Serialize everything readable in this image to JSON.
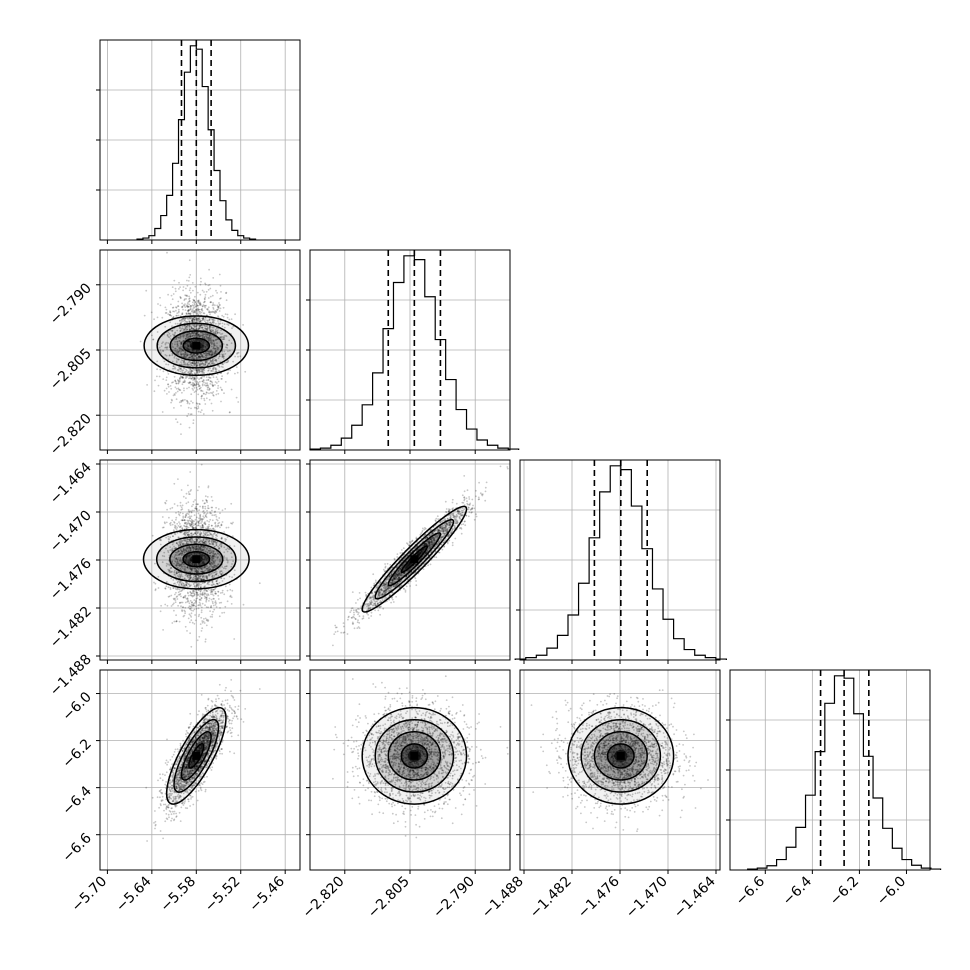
{
  "figure": {
    "type": "corner",
    "title": ""
  },
  "chart_data": {
    "type": "corner",
    "title": "",
    "parameters": [
      {
        "label": "",
        "range": [
          -5.71,
          -5.44
        ],
        "ticks": [
          -5.7,
          -5.64,
          -5.58,
          -5.52,
          -5.46
        ],
        "tick_labels": [
          "−5.70",
          "−5.64",
          "−5.58",
          "−5.52",
          "−5.46"
        ],
        "quantiles": [
          -5.6,
          -5.58,
          -5.56
        ]
      },
      {
        "label": "",
        "range": [
          -2.828,
          -2.782
        ],
        "ticks": [
          -2.82,
          -2.805,
          -2.79
        ],
        "tick_labels": [
          "−2.820",
          "−2.805",
          "−2.790"
        ],
        "quantiles": [
          -2.81,
          -2.804,
          -2.798
        ]
      },
      {
        "label": "",
        "range": [
          -1.4885,
          -1.4635
        ],
        "ticks": [
          -1.488,
          -1.482,
          -1.476,
          -1.47,
          -1.464
        ],
        "tick_labels": [
          "−1.488",
          "−1.482",
          "−1.476",
          "−1.470",
          "−1.464"
        ],
        "quantiles": [
          -1.4792,
          -1.4759,
          -1.4726
        ]
      },
      {
        "label": "",
        "range": [
          -6.75,
          -5.9
        ],
        "ticks": [
          -6.6,
          -6.4,
          -6.2,
          -6.0
        ],
        "tick_labels": [
          "−6.6",
          "−6.4",
          "−6.2",
          "−6.0"
        ],
        "quantiles": [
          -6.365,
          -6.265,
          -6.16
        ]
      }
    ],
    "histograms": [
      [
        2,
        4,
        9,
        24,
        51,
        93,
        160,
        251,
        350,
        405,
        398,
        320,
        230,
        145,
        82,
        42,
        20,
        9,
        4,
        2
      ],
      [
        2,
        4,
        10,
        25,
        52,
        95,
        162,
        255,
        352,
        408,
        400,
        322,
        232,
        148,
        85,
        44,
        21,
        10,
        4,
        2
      ],
      [
        2,
        5,
        10,
        25,
        52,
        95,
        162,
        258,
        355,
        410,
        402,
        325,
        235,
        150,
        86,
        45,
        22,
        10,
        5,
        2
      ],
      [
        2,
        4,
        9,
        22,
        48,
        90,
        158,
        250,
        352,
        410,
        405,
        330,
        240,
        152,
        88,
        46,
        22,
        10,
        4,
        2
      ]
    ],
    "correlations": [
      [
        1,
        0,
        0,
        0.78
      ],
      [
        0,
        1,
        0.95,
        0
      ],
      [
        0,
        0.95,
        1,
        0
      ],
      [
        0.78,
        0,
        0,
        1
      ]
    ],
    "sigma_levels": [
      0.5,
      1.0,
      1.5,
      2.0
    ],
    "grid": true,
    "colors": {
      "axes": "#000000",
      "grid": "#b0b0b0",
      "contour": "#000000",
      "density": "#000000",
      "scatter": "#000000"
    }
  }
}
